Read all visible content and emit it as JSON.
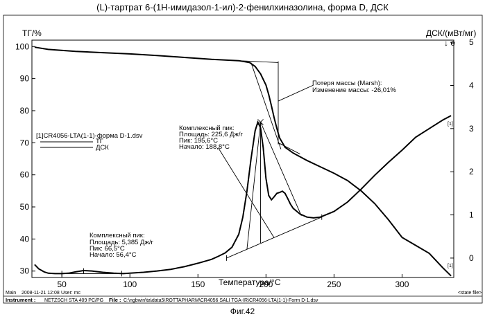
{
  "title": "(L)-тартрат 6-(1Н-имидазол-1-ил)-2-фенилхиназолина, форма D, ДСК",
  "figure_label": "Фиг.42",
  "chart_data": {
    "type": "line",
    "xlabel": "Температура/°С",
    "ylabel_left": "ТГ/%",
    "ylabel_right": "ДСК/(мВт/мг)",
    "right_axis_marker": "↓ e",
    "xlim": [
      28,
      338
    ],
    "ylim_left": [
      28,
      102
    ],
    "ylim_right": [
      -0.45,
      5.05
    ],
    "x_ticks": [
      50,
      100,
      150,
      200,
      250,
      300
    ],
    "y_ticks_left": [
      30,
      40,
      50,
      60,
      70,
      80,
      90,
      100
    ],
    "y_ticks_right": [
      0,
      1,
      2,
      3,
      4,
      5
    ],
    "grid": false,
    "legend": {
      "file": "[1]CR4056-LTA(1-1)-форма D-1.dsv",
      "entries": [
        "ТГ",
        "ДСК"
      ],
      "placement": "upper-left"
    },
    "series": [
      {
        "name": "ТГ",
        "axis": "left",
        "x": [
          30,
          40,
          60,
          80,
          100,
          120,
          140,
          160,
          180,
          188,
          192,
          196,
          200,
          202,
          204,
          206,
          208,
          210,
          214,
          220,
          230,
          240,
          250,
          260,
          270,
          280,
          290,
          300,
          310,
          320,
          330,
          336
        ],
        "y": [
          99.8,
          99.1,
          98.5,
          98.1,
          97.7,
          97.2,
          96.6,
          96.0,
          95.6,
          95.0,
          93.8,
          91.5,
          88.0,
          85.0,
          81.5,
          77.8,
          74.5,
          71.5,
          68.6,
          66.8,
          64.5,
          62.5,
          60.5,
          58.2,
          55.0,
          51.0,
          46.0,
          40.5,
          38.0,
          35.5,
          31.0,
          28.5
        ]
      },
      {
        "name": "ДСК",
        "axis": "right",
        "x": [
          30,
          33,
          37,
          40,
          45,
          50,
          55,
          60,
          66,
          72,
          80,
          88,
          95,
          100,
          110,
          120,
          130,
          140,
          150,
          160,
          165,
          170,
          175,
          180,
          183,
          186,
          189,
          192,
          194,
          196,
          198,
          200,
          202,
          204,
          206,
          208,
          210,
          212,
          214,
          216,
          218,
          220,
          225,
          230,
          235,
          240,
          250,
          260,
          270,
          280,
          290,
          300,
          310,
          320,
          330,
          336
        ],
        "y": [
          -0.15,
          -0.25,
          -0.32,
          -0.35,
          -0.36,
          -0.36,
          -0.35,
          -0.32,
          -0.29,
          -0.3,
          -0.33,
          -0.35,
          -0.36,
          -0.35,
          -0.33,
          -0.3,
          -0.26,
          -0.2,
          -0.12,
          -0.03,
          0.04,
          0.12,
          0.25,
          0.55,
          0.95,
          1.55,
          2.3,
          2.95,
          3.15,
          3.02,
          2.55,
          1.85,
          1.45,
          1.35,
          1.42,
          1.5,
          1.52,
          1.55,
          1.5,
          1.38,
          1.25,
          1.15,
          1.02,
          0.95,
          0.93,
          0.95,
          1.08,
          1.3,
          1.6,
          1.92,
          2.22,
          2.5,
          2.8,
          3.0,
          3.2,
          3.3
        ]
      }
    ],
    "annotations": [
      {
        "id": "mass_loss",
        "lines": [
          "Потеря массы (Marsh):",
          "Изменение массы: -26,01%"
        ]
      },
      {
        "id": "peak_big",
        "lines": [
          "Комплексный пик:",
          "Площадь: 225,6 Дж/г",
          "Пик: 195,6°С",
          "Начало: 188,8°С"
        ]
      },
      {
        "id": "peak_small",
        "lines": [
          "Комплексный пик:",
          "Площадь: 5,385 Дж/г",
          "Пик: 66,5°С",
          "Начало: 56,4°С"
        ]
      }
    ],
    "curve_end_labels": [
      "[1]",
      "[1]"
    ]
  },
  "footer": {
    "main_label": "Main",
    "datetime": "2008-11-21 12:08",
    "user": "User: mc",
    "state_file": "<state file>",
    "instrument_label": "Instrument :",
    "instrument_value": "NETZSCH STA 409 PC/PG",
    "file_label": "File :",
    "file_value": "C:\\ngbwin\\ta\\data5\\ROTTAPHARM\\CR4056 SALI TGA-IR\\CR4056-LTA(1-1)-Form D-1.dsv"
  }
}
